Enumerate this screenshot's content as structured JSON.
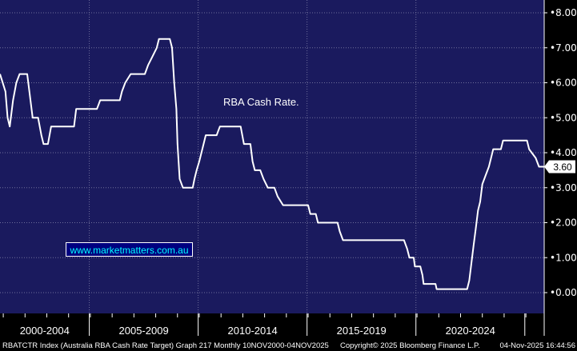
{
  "watermark": "www.marketmatters.com.au",
  "colors": {
    "plot_bg": "#1a1a5e",
    "line": "#ffffff",
    "grid": "#6e6e9a",
    "frame_bg": "#000000",
    "watermark_text": "#00ffff",
    "watermark_bg": "#000080"
  },
  "footer": {
    "left": "RBATCTR Index (Australia RBA Cash Rate Target) Graph 217 Monthly 10NOV2000-04NOV2025",
    "center": "Copyright© 2025 Bloomberg Finance L.P.",
    "right": "04-Nov-2025 16:44:56"
  },
  "chart_data": {
    "type": "line",
    "title": "",
    "xlabel": "",
    "ylabel": "",
    "ylim": [
      -0.5,
      8.0
    ],
    "xlim": [
      2000.85,
      2025.84
    ],
    "grid": true,
    "y_axis_side": "right",
    "y_ticks": [
      "8.00",
      "7.00",
      "6.00",
      "5.00",
      "4.00",
      "3.00",
      "2.00",
      "1.00",
      "0.00"
    ],
    "x_periods": [
      {
        "label": "2000-2004",
        "start": 2000.85,
        "end": 2004.95
      },
      {
        "label": "2005-2009",
        "start": 2004.95,
        "end": 2009.95
      },
      {
        "label": "2010-2014",
        "start": 2009.95,
        "end": 2014.95
      },
      {
        "label": "2015-2019",
        "start": 2014.95,
        "end": 2019.95
      },
      {
        "label": "2020-2024",
        "start": 2019.95,
        "end": 2024.95
      }
    ],
    "annotation": "RBA Cash Rate.",
    "last_value_label": "3.60",
    "series": [
      {
        "values": [
          [
            2000.85,
            6.25
          ],
          [
            2001.1,
            5.75
          ],
          [
            2001.2,
            5.0
          ],
          [
            2001.3,
            4.75
          ],
          [
            2001.45,
            5.5
          ],
          [
            2001.6,
            6.0
          ],
          [
            2001.75,
            6.25
          ],
          [
            2002.1,
            6.25
          ],
          [
            2002.2,
            5.75
          ],
          [
            2002.35,
            5.0
          ],
          [
            2002.6,
            5.0
          ],
          [
            2002.75,
            4.5
          ],
          [
            2002.85,
            4.25
          ],
          [
            2003.05,
            4.25
          ],
          [
            2003.2,
            4.75
          ],
          [
            2004.0,
            4.75
          ],
          [
            2004.25,
            4.75
          ],
          [
            2004.35,
            5.25
          ],
          [
            2004.95,
            5.25
          ],
          [
            2005.3,
            5.25
          ],
          [
            2005.45,
            5.5
          ],
          [
            2006.35,
            5.5
          ],
          [
            2006.45,
            5.75
          ],
          [
            2006.6,
            6.0
          ],
          [
            2006.85,
            6.25
          ],
          [
            2007.5,
            6.25
          ],
          [
            2007.65,
            6.5
          ],
          [
            2007.85,
            6.75
          ],
          [
            2008.05,
            7.0
          ],
          [
            2008.15,
            7.25
          ],
          [
            2008.65,
            7.25
          ],
          [
            2008.75,
            7.0
          ],
          [
            2008.85,
            6.0
          ],
          [
            2008.95,
            5.25
          ],
          [
            2009.0,
            4.25
          ],
          [
            2009.1,
            3.25
          ],
          [
            2009.25,
            3.0
          ],
          [
            2009.7,
            3.0
          ],
          [
            2009.78,
            3.25
          ],
          [
            2009.88,
            3.5
          ],
          [
            2010.0,
            3.75
          ],
          [
            2010.2,
            4.25
          ],
          [
            2010.3,
            4.5
          ],
          [
            2010.8,
            4.5
          ],
          [
            2010.95,
            4.75
          ],
          [
            2011.9,
            4.75
          ],
          [
            2012.05,
            4.25
          ],
          [
            2012.35,
            4.25
          ],
          [
            2012.45,
            3.75
          ],
          [
            2012.55,
            3.5
          ],
          [
            2012.8,
            3.5
          ],
          [
            2012.95,
            3.25
          ],
          [
            2013.15,
            3.0
          ],
          [
            2013.45,
            3.0
          ],
          [
            2013.6,
            2.75
          ],
          [
            2013.85,
            2.5
          ],
          [
            2015.0,
            2.5
          ],
          [
            2015.1,
            2.25
          ],
          [
            2015.35,
            2.25
          ],
          [
            2015.45,
            2.0
          ],
          [
            2016.35,
            2.0
          ],
          [
            2016.45,
            1.75
          ],
          [
            2016.6,
            1.5
          ],
          [
            2019.4,
            1.5
          ],
          [
            2019.55,
            1.25
          ],
          [
            2019.65,
            1.0
          ],
          [
            2019.85,
            1.0
          ],
          [
            2019.9,
            0.75
          ],
          [
            2020.15,
            0.75
          ],
          [
            2020.25,
            0.5
          ],
          [
            2020.3,
            0.25
          ],
          [
            2020.85,
            0.25
          ],
          [
            2020.9,
            0.1
          ],
          [
            2022.3,
            0.1
          ],
          [
            2022.4,
            0.35
          ],
          [
            2022.5,
            0.85
          ],
          [
            2022.6,
            1.35
          ],
          [
            2022.7,
            1.85
          ],
          [
            2022.8,
            2.35
          ],
          [
            2022.9,
            2.6
          ],
          [
            2023.0,
            3.1
          ],
          [
            2023.15,
            3.35
          ],
          [
            2023.3,
            3.6
          ],
          [
            2023.4,
            3.85
          ],
          [
            2023.5,
            4.1
          ],
          [
            2023.85,
            4.1
          ],
          [
            2023.95,
            4.35
          ],
          [
            2025.05,
            4.35
          ],
          [
            2025.15,
            4.1
          ],
          [
            2025.45,
            3.85
          ],
          [
            2025.6,
            3.6
          ],
          [
            2025.84,
            3.6
          ]
        ]
      }
    ]
  }
}
